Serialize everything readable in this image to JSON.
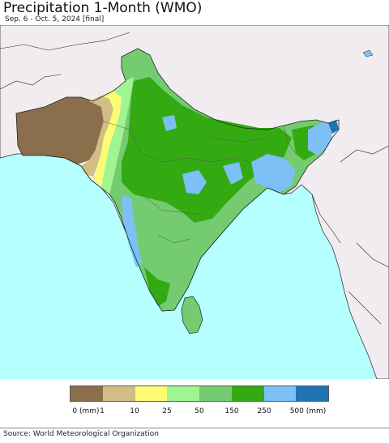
{
  "header": {
    "title": "Precipitation 1-Month (WMO)",
    "subtitle": "Sep. 6 - Oct. 5, 2024 [final]"
  },
  "legend": {
    "classes": [
      {
        "label": "0 (mm)",
        "color": "#8b6e4b"
      },
      {
        "label": "1",
        "color": "#d2bd85"
      },
      {
        "label": "10",
        "color": "#fdfb74"
      },
      {
        "label": "25",
        "color": "#a0f593"
      },
      {
        "label": "50",
        "color": "#74cb70"
      },
      {
        "label": "150",
        "color": "#33aa12"
      },
      {
        "label": "250",
        "color": "#7cc0f5"
      },
      {
        "label": "500 (mm)",
        "color": "#1e74b3"
      }
    ]
  },
  "footer": {
    "source": "Source: World Meteorological Organization"
  },
  "map_colors": {
    "ocean": "#b5ffff",
    "land_outside": "#f1ecf0",
    "border": "#222222"
  }
}
